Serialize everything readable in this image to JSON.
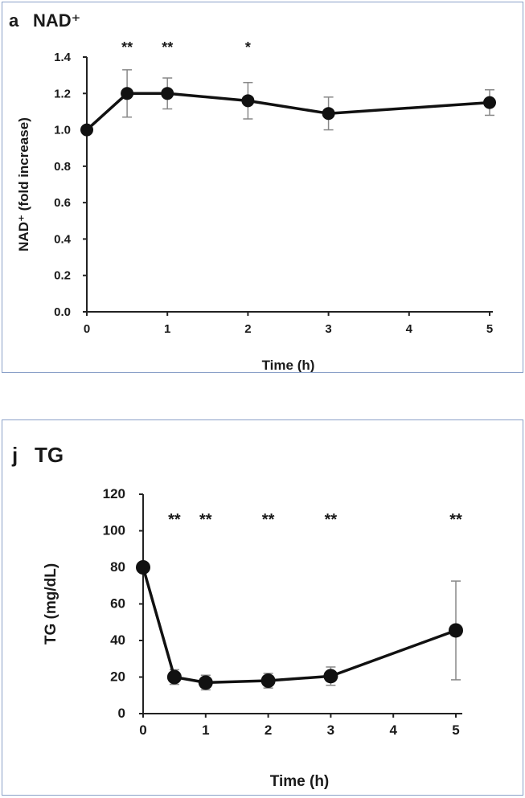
{
  "chart_data": [
    {
      "type": "line",
      "panel_letter": "a",
      "title": "NAD⁺",
      "xlabel": "Time (h)",
      "ylabel": "NAD⁺ (fold increase)",
      "xlim": [
        0,
        5
      ],
      "ylim": [
        0,
        1.4
      ],
      "x_ticks": [
        "0",
        "1",
        "2",
        "3",
        "4",
        "5"
      ],
      "y_ticks": [
        "0.0",
        "0.2",
        "0.4",
        "0.6",
        "0.8",
        "1.0",
        "1.2",
        "1.4"
      ],
      "x_tick_values": [
        0,
        1,
        2,
        3,
        4,
        5
      ],
      "y_tick_values": [
        0,
        0.2,
        0.4,
        0.6,
        0.8,
        1.0,
        1.2,
        1.4
      ],
      "grid": false,
      "series": [
        {
          "x": [
            0,
            0.5,
            1,
            2,
            3,
            5
          ],
          "y": [
            1.0,
            1.2,
            1.2,
            1.16,
            1.09,
            1.15
          ],
          "error": [
            0,
            0.13,
            0.085,
            0.1,
            0.09,
            0.07
          ],
          "significance": [
            "",
            "**",
            "**",
            "*",
            "",
            ""
          ]
        }
      ]
    },
    {
      "type": "line",
      "panel_letter": "j",
      "title": "TG",
      "xlabel": "Time (h)",
      "ylabel": "TG (mg/dL)",
      "xlim": [
        0,
        5
      ],
      "ylim": [
        0,
        120
      ],
      "x_ticks": [
        "0",
        "1",
        "2",
        "3",
        "4",
        "5"
      ],
      "y_ticks": [
        "0",
        "20",
        "40",
        "60",
        "80",
        "100",
        "120"
      ],
      "x_tick_values": [
        0,
        1,
        2,
        3,
        4,
        5
      ],
      "y_tick_values": [
        0,
        20,
        40,
        60,
        80,
        100,
        120
      ],
      "grid": false,
      "series": [
        {
          "x": [
            0,
            0.5,
            1,
            2,
            3,
            5
          ],
          "y": [
            80,
            20,
            17,
            18,
            20.5,
            45.5
          ],
          "error": [
            0,
            4,
            4,
            4,
            5,
            27
          ],
          "significance": [
            "",
            "**",
            "**",
            "**",
            "**",
            "**"
          ]
        }
      ]
    }
  ]
}
